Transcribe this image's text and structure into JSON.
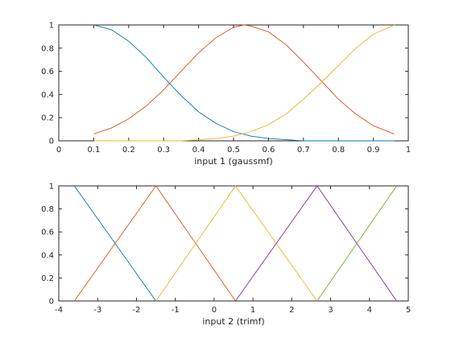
{
  "chart_data": [
    {
      "type": "line",
      "xlabel": "input 1 (gaussmf)",
      "ylabel": "",
      "xlim": [
        0,
        1
      ],
      "ylim": [
        0,
        1
      ],
      "xticks": [
        "0",
        "0.1",
        "0.2",
        "0.3",
        "0.4",
        "0.5",
        "0.6",
        "0.7",
        "0.8",
        "0.9",
        "1"
      ],
      "yticks": [
        "0",
        "0.2",
        "0.4",
        "0.6",
        "0.8",
        "1"
      ],
      "grid": false,
      "series": [
        {
          "color": "#0072BD",
          "x": [
            0.1,
            0.15,
            0.2,
            0.25,
            0.3,
            0.35,
            0.4,
            0.45,
            0.5,
            0.55,
            0.6,
            0.65,
            0.7,
            0.75,
            0.8,
            0.85,
            0.9,
            0.96
          ],
          "y": [
            1.0,
            0.96,
            0.86,
            0.72,
            0.55,
            0.39,
            0.25,
            0.15,
            0.08,
            0.04,
            0.02,
            0.01,
            0.0,
            0.0,
            0.0,
            0.0,
            0.0,
            0.0
          ]
        },
        {
          "color": "#D95319",
          "x": [
            0.1,
            0.15,
            0.2,
            0.25,
            0.3,
            0.35,
            0.4,
            0.45,
            0.5,
            0.53,
            0.55,
            0.6,
            0.65,
            0.7,
            0.75,
            0.8,
            0.85,
            0.9,
            0.96
          ],
          "y": [
            0.06,
            0.11,
            0.19,
            0.3,
            0.44,
            0.6,
            0.76,
            0.89,
            0.98,
            1.0,
            0.99,
            0.94,
            0.83,
            0.68,
            0.52,
            0.36,
            0.23,
            0.13,
            0.06
          ],
          "y_note": ""
        },
        {
          "color": "#EDB120",
          "x": [
            0.1,
            0.2,
            0.3,
            0.35,
            0.4,
            0.45,
            0.5,
            0.55,
            0.6,
            0.65,
            0.7,
            0.75,
            0.8,
            0.85,
            0.9,
            0.96
          ],
          "y": [
            0.0,
            0.0,
            0.0,
            0.0,
            0.01,
            0.02,
            0.04,
            0.08,
            0.14,
            0.23,
            0.36,
            0.5,
            0.65,
            0.8,
            0.92,
            1.0
          ]
        }
      ]
    },
    {
      "type": "line",
      "xlabel": "input 2 (trimf)",
      "ylabel": "",
      "xlim": [
        -4,
        5
      ],
      "ylim": [
        0,
        1
      ],
      "xticks": [
        "-4",
        "-3",
        "-2",
        "-1",
        "0",
        "1",
        "2",
        "3",
        "4",
        "5"
      ],
      "yticks": [
        "0",
        "0.2",
        "0.4",
        "0.6",
        "0.8",
        "1"
      ],
      "grid": false,
      "series": [
        {
          "color": "#0072BD",
          "x": [
            -3.6,
            -1.5
          ],
          "y": [
            1,
            0
          ]
        },
        {
          "color": "#D95319",
          "x": [
            -3.6,
            -1.5,
            0.55
          ],
          "y": [
            0,
            1,
            0
          ]
        },
        {
          "color": "#EDB120",
          "x": [
            -1.5,
            0.55,
            2.65
          ],
          "y": [
            0,
            1,
            0
          ]
        },
        {
          "color": "#7E2F8E",
          "x": [
            0.55,
            2.65,
            4.7
          ],
          "y": [
            0,
            1,
            0
          ]
        },
        {
          "color": "#77AC30",
          "x": [
            2.65,
            4.7
          ],
          "y": [
            0,
            1
          ]
        }
      ]
    }
  ]
}
